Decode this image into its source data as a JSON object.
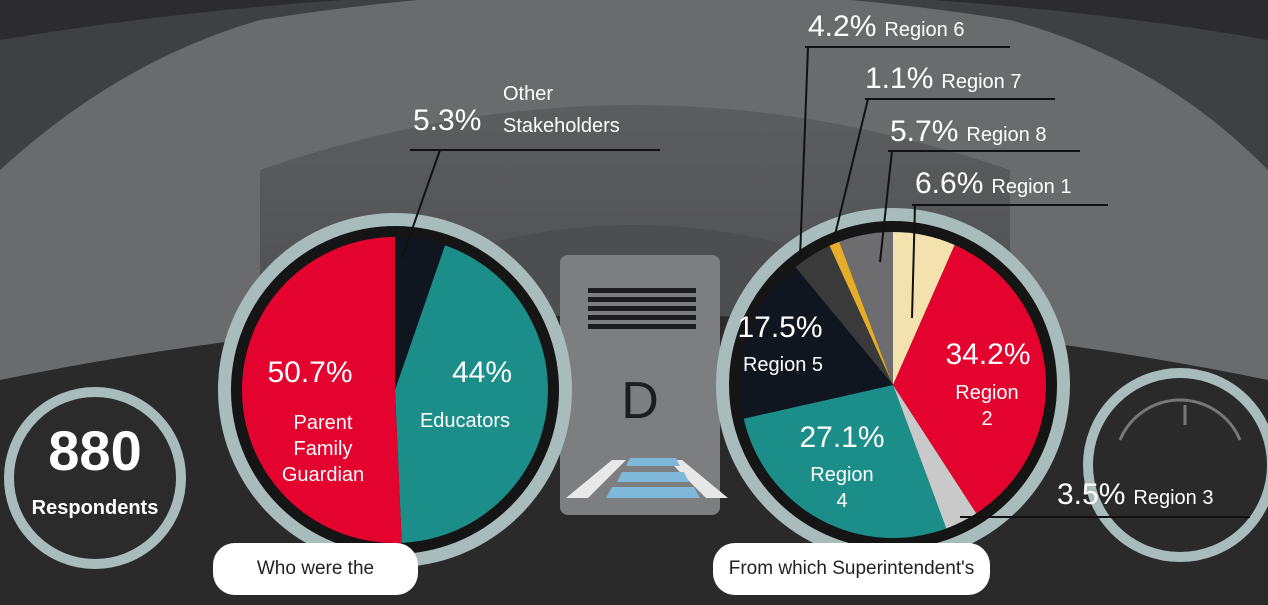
{
  "respondents": {
    "count": 880,
    "label": "Respondents"
  },
  "gear": "D",
  "chart_data": [
    {
      "type": "pie",
      "title": "Who were the respondents?",
      "categories": [
        "Other Stakeholders",
        "Educators",
        "Parent Family Guardian"
      ],
      "values": [
        5.3,
        44,
        50.7
      ],
      "value_labels": [
        "5.3%",
        "44%",
        "50.7%"
      ],
      "colors": [
        "#0f1620",
        "#1b8e8a",
        "#e4032e"
      ]
    },
    {
      "type": "pie",
      "title": "From which Superintendent's Region?",
      "categories": [
        "Region 1",
        "Region 2",
        "Region 3",
        "Region 4",
        "Region 5",
        "Region 6",
        "Region 7",
        "Region 8"
      ],
      "values": [
        6.6,
        34.2,
        3.5,
        27.1,
        17.5,
        4.2,
        1.1,
        5.7
      ],
      "value_labels": [
        "6.6%",
        "34.2%",
        "3.5%",
        "27.1%",
        "17.5%",
        "4.2%",
        "1.1%",
        "5.7%"
      ],
      "colors": [
        "#f3e2ad",
        "#e4032e",
        "#c9c9c9",
        "#1b8e8a",
        "#0f1620",
        "#3a3a3a",
        "#e6ad2a",
        "#6d6d6f"
      ]
    }
  ]
}
